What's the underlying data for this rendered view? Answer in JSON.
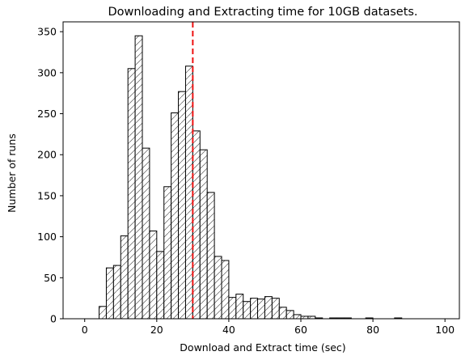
{
  "chart_data": {
    "type": "bar",
    "title": "Downloading and Extracting time for 10GB datasets.",
    "xlabel": "Download and Extract time (sec)",
    "ylabel": "Number of runs",
    "xlim": [
      -6,
      104
    ],
    "ylim": [
      0,
      362
    ],
    "xticks": [
      0,
      20,
      40,
      60,
      80,
      100
    ],
    "yticks": [
      0,
      50,
      100,
      150,
      200,
      250,
      300,
      350
    ],
    "bin_width": 2,
    "hatch": "diagonal",
    "bar_fill": "#ffffff",
    "bar_edge_color": "#000000",
    "bins": [
      {
        "x": 4,
        "value": 15
      },
      {
        "x": 6,
        "value": 62
      },
      {
        "x": 8,
        "value": 65
      },
      {
        "x": 10,
        "value": 101
      },
      {
        "x": 12,
        "value": 305
      },
      {
        "x": 14,
        "value": 345
      },
      {
        "x": 16,
        "value": 208
      },
      {
        "x": 18,
        "value": 107
      },
      {
        "x": 20,
        "value": 82
      },
      {
        "x": 22,
        "value": 161
      },
      {
        "x": 24,
        "value": 251
      },
      {
        "x": 26,
        "value": 277
      },
      {
        "x": 28,
        "value": 308
      },
      {
        "x": 30,
        "value": 229
      },
      {
        "x": 32,
        "value": 206
      },
      {
        "x": 34,
        "value": 154
      },
      {
        "x": 36,
        "value": 76
      },
      {
        "x": 38,
        "value": 71
      },
      {
        "x": 40,
        "value": 26
      },
      {
        "x": 42,
        "value": 30
      },
      {
        "x": 44,
        "value": 21
      },
      {
        "x": 46,
        "value": 25
      },
      {
        "x": 48,
        "value": 24
      },
      {
        "x": 50,
        "value": 27
      },
      {
        "x": 52,
        "value": 25
      },
      {
        "x": 54,
        "value": 14
      },
      {
        "x": 56,
        "value": 10
      },
      {
        "x": 58,
        "value": 5
      },
      {
        "x": 60,
        "value": 3
      },
      {
        "x": 62,
        "value": 3
      },
      {
        "x": 64,
        "value": 1
      },
      {
        "x": 66,
        "value": 0
      },
      {
        "x": 68,
        "value": 1
      },
      {
        "x": 70,
        "value": 1
      },
      {
        "x": 72,
        "value": 1
      },
      {
        "x": 74,
        "value": 0
      },
      {
        "x": 76,
        "value": 0
      },
      {
        "x": 78,
        "value": 1
      },
      {
        "x": 80,
        "value": 0
      },
      {
        "x": 82,
        "value": 0
      },
      {
        "x": 84,
        "value": 0
      },
      {
        "x": 86,
        "value": 1
      }
    ],
    "reference_line": {
      "x": 30,
      "color": "#ee1111",
      "style": "dashed"
    }
  }
}
